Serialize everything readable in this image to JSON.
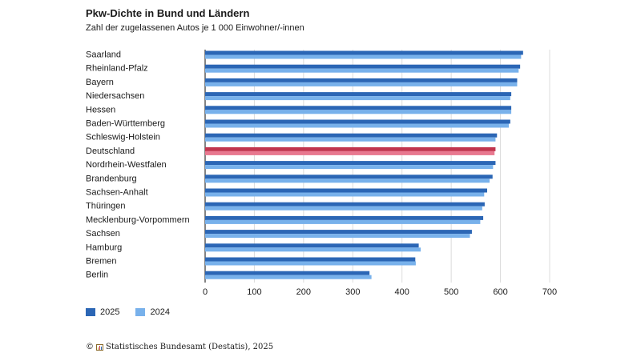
{
  "header": {
    "title": "Pkw-Dichte in Bund und Ländern",
    "subtitle": "Zahl der zugelassenen Autos je 1 000 Einwohner/-innen"
  },
  "legend": {
    "items": [
      {
        "label": "2025",
        "color": "#2b66b5"
      },
      {
        "label": "2024",
        "color": "#78b1eb"
      }
    ]
  },
  "footer": {
    "copyright": "©",
    "logo_icon": "destatis-logo-icon",
    "source": "Statistisches Bundesamt (Destatis), 2025"
  },
  "chart_data": {
    "type": "bar",
    "orientation": "horizontal",
    "title": "Pkw-Dichte in Bund und Ländern",
    "subtitle": "Zahl der zugelassenen Autos je 1 000 Einwohner/-innen",
    "xlim": [
      0,
      700
    ],
    "xticks": [
      0,
      100,
      200,
      300,
      400,
      500,
      600,
      700
    ],
    "grid": "vertical",
    "legend_position": "bottom-left",
    "highlight_category": "Deutschland",
    "highlight_colors": {
      "2025": "#c1354e",
      "2024": "#e8788f"
    },
    "categories": [
      "Saarland",
      "Rheinland-Pfalz",
      "Bayern",
      "Niedersachsen",
      "Hessen",
      "Baden-Württemberg",
      "Schleswig-Holstein",
      "Deutschland",
      "Nordrhein-Westfalen",
      "Brandenburg",
      "Sachsen-Anhalt",
      "Thüringen",
      "Mecklenburg-Vorpommern",
      "Sachsen",
      "Hamburg",
      "Bremen",
      "Berlin"
    ],
    "series": [
      {
        "name": "2025",
        "color": "#2b66b5",
        "values": [
          646,
          640,
          634,
          622,
          622,
          620,
          593,
          590,
          590,
          584,
          573,
          568,
          565,
          542,
          434,
          427,
          334
        ]
      },
      {
        "name": "2024",
        "color": "#78b1eb",
        "values": [
          642,
          637,
          634,
          620,
          622,
          617,
          590,
          588,
          585,
          578,
          567,
          563,
          559,
          538,
          438,
          428,
          338
        ]
      }
    ]
  }
}
